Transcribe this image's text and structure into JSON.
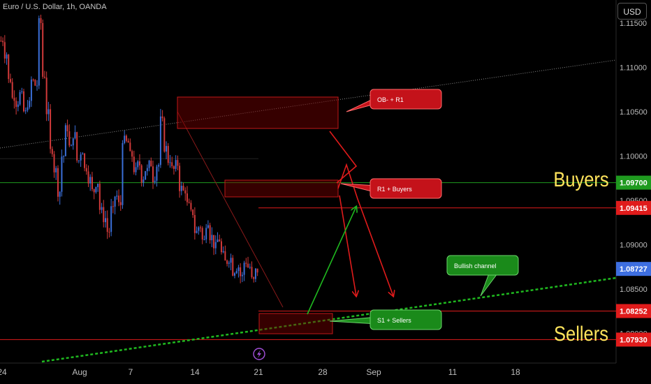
{
  "header": {
    "title": "Euro / U.S. Dollar, 1h, OANDA",
    "currency_button": "USD"
  },
  "chart_data": {
    "type": "candlestick",
    "symbol": "EURUSD",
    "timeframe": "1h",
    "xlabels": [
      "24",
      "Aug",
      "7",
      "14",
      "21",
      "28",
      "Sep",
      "11",
      "18"
    ],
    "y_axis_labels": [
      "1.11500",
      "1.11000",
      "1.10500",
      "1.10000",
      "1.09500",
      "1.09000",
      "1.08500",
      "1.08000"
    ],
    "ylim": [
      1.077,
      1.116
    ],
    "price_tags": [
      {
        "label": "1.09700",
        "value": 1.097,
        "color": "#1f9a1f"
      },
      {
        "label": "1.09415",
        "value": 1.09415,
        "color": "#e01b1b"
      },
      {
        "label": "1.08727",
        "value": 1.08727,
        "color": "#3d6ee0"
      },
      {
        "label": "1.08252",
        "value": 1.08252,
        "color": "#e01b1b"
      },
      {
        "label": "1.07930",
        "value": 1.0793,
        "color": "#e01b1b"
      }
    ],
    "annotations": {
      "buyers": "Buyers",
      "sellers": "Sellers",
      "ob_r1": "OB- + R1",
      "r1_buyers": "R1 + Buyers",
      "s1_sellers": "S1 + Sellers",
      "bullish_channel": "Bullish channel"
    },
    "price_path": [
      [
        0,
        1.113
      ],
      [
        2,
        1.1115
      ],
      [
        4,
        1.1085
      ],
      [
        6,
        1.1065
      ],
      [
        8,
        1.106
      ],
      [
        10,
        1.107
      ],
      [
        12,
        1.105
      ],
      [
        14,
        1.106
      ],
      [
        16,
        1.1085
      ],
      [
        18,
        1.108
      ],
      [
        20,
        1.115
      ],
      [
        22,
        1.109
      ],
      [
        24,
        1.105
      ],
      [
        26,
        1.1005
      ],
      [
        28,
        1.0985
      ],
      [
        30,
        1.096
      ],
      [
        32,
        1.1
      ],
      [
        34,
        1.103
      ],
      [
        36,
        1.101
      ],
      [
        38,
        1.1025
      ],
      [
        40,
        1.0995
      ],
      [
        42,
        1.1005
      ],
      [
        44,
        1.0985
      ],
      [
        46,
        1.0975
      ],
      [
        48,
        1.096
      ],
      [
        50,
        1.097
      ],
      [
        52,
        1.094
      ],
      [
        54,
        1.093
      ],
      [
        56,
        1.0915
      ],
      [
        58,
        1.094
      ],
      [
        60,
        1.0955
      ],
      [
        62,
        1.0945
      ],
      [
        64,
        1.102
      ],
      [
        66,
        1.1015
      ],
      [
        68,
        1.1
      ],
      [
        70,
        1.0985
      ],
      [
        72,
        1.099
      ],
      [
        74,
        1.0975
      ],
      [
        76,
        1.0985
      ],
      [
        78,
        1.099
      ],
      [
        80,
        1.0975
      ],
      [
        82,
        1.099
      ],
      [
        84,
        1.104
      ],
      [
        86,
        1.101
      ],
      [
        88,
        1.0995
      ],
      [
        90,
        1.0985
      ],
      [
        92,
        1.099
      ],
      [
        94,
        1.0965
      ],
      [
        96,
        1.096
      ],
      [
        98,
        1.0945
      ],
      [
        100,
        1.0935
      ],
      [
        102,
        1.0915
      ],
      [
        104,
        1.092
      ],
      [
        106,
        1.0905
      ],
      [
        108,
        1.0925
      ],
      [
        110,
        1.091
      ],
      [
        112,
        1.09
      ],
      [
        114,
        1.0905
      ],
      [
        116,
        1.089
      ],
      [
        118,
        1.088
      ],
      [
        120,
        1.0885
      ],
      [
        122,
        1.087
      ],
      [
        124,
        1.0875
      ],
      [
        126,
        1.0865
      ],
      [
        128,
        1.088
      ],
      [
        130,
        1.0875
      ],
      [
        132,
        1.086
      ],
      [
        134,
        1.087
      ]
    ]
  }
}
